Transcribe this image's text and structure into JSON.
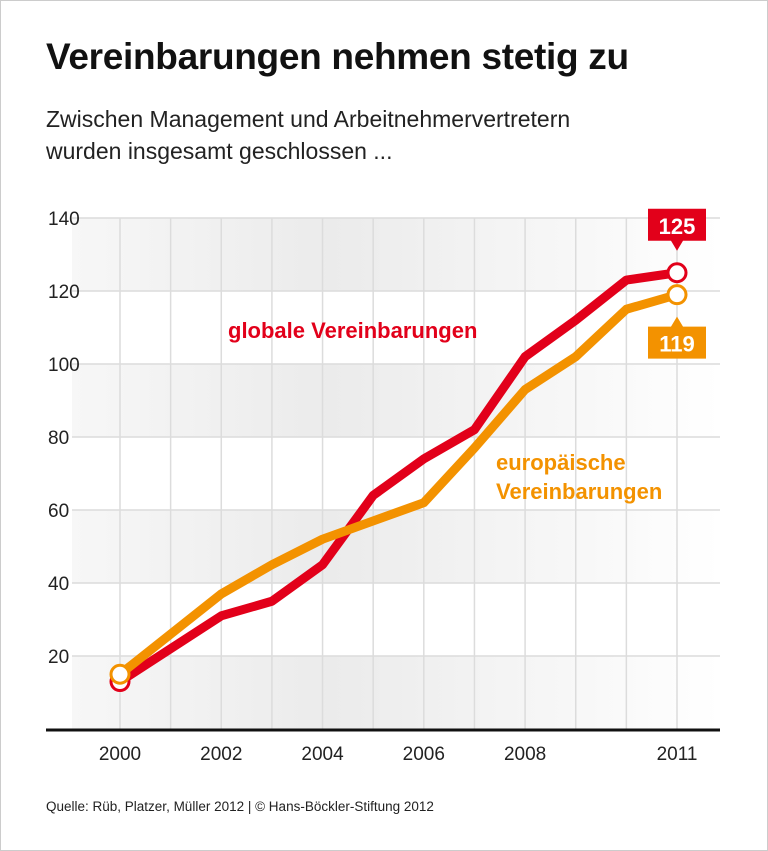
{
  "title": "Vereinbarungen nehmen stetig zu",
  "subtitle_line1": "Zwischen Management und Arbeitnehmervertretern",
  "subtitle_line2": "wurden insgesamt geschlossen ...",
  "source": "Quelle: Rüb, Platzer, Müller 2012 | © Hans-Böckler-Stiftung 2012",
  "chart_data": {
    "type": "line",
    "xlim": [
      2000,
      2011
    ],
    "ylim": [
      0,
      140
    ],
    "x_ticks": [
      "2000",
      "2002",
      "2004",
      "2006",
      "2008",
      "2011"
    ],
    "y_ticks": [
      "20",
      "40",
      "60",
      "80",
      "100",
      "120",
      "140"
    ],
    "grid": true,
    "series": [
      {
        "name": "globale Vereinbarungen",
        "color": "#e2001a",
        "x": [
          2000,
          2002,
          2003,
          2004,
          2005,
          2006,
          2007,
          2008,
          2009,
          2010,
          2011
        ],
        "y": [
          13,
          31,
          35,
          45,
          64,
          74,
          82,
          102,
          112,
          123,
          125
        ],
        "end_label": "125"
      },
      {
        "name": "europäische Vereinbarungen",
        "name_line1": "europäische",
        "name_line2": "Vereinbarungen",
        "color": "#f39200",
        "x": [
          2000,
          2002,
          2003,
          2004,
          2005,
          2006,
          2007,
          2008,
          2009,
          2010,
          2011
        ],
        "y": [
          15,
          37,
          45,
          52,
          57,
          62,
          77,
          93,
          102,
          115,
          119
        ],
        "end_label": "119"
      }
    ]
  }
}
